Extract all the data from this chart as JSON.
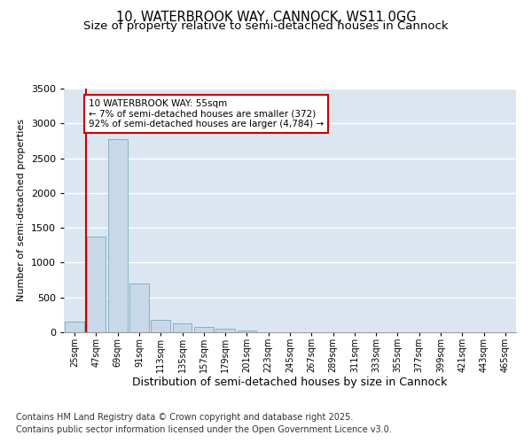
{
  "title_line1": "10, WATERBROOK WAY, CANNOCK, WS11 0GG",
  "title_line2": "Size of property relative to semi-detached houses in Cannock",
  "xlabel": "Distribution of semi-detached houses by size in Cannock",
  "ylabel": "Number of semi-detached properties",
  "categories": [
    "25sqm",
    "47sqm",
    "69sqm",
    "91sqm",
    "113sqm",
    "135sqm",
    "157sqm",
    "179sqm",
    "201sqm",
    "223sqm",
    "245sqm",
    "267sqm",
    "289sqm",
    "311sqm",
    "333sqm",
    "355sqm",
    "377sqm",
    "399sqm",
    "421sqm",
    "443sqm",
    "465sqm"
  ],
  "values": [
    150,
    1380,
    2780,
    700,
    175,
    125,
    75,
    50,
    30,
    5,
    2,
    1,
    0,
    0,
    0,
    0,
    0,
    0,
    0,
    0,
    0
  ],
  "bar_color": "#c8d8e8",
  "bar_edge_color": "#7aaabb",
  "background_color": "#dce6f0",
  "grid_color": "#ffffff",
  "vline_x": 0.53,
  "vline_color": "#cc0000",
  "annotation_text": "10 WATERBROOK WAY: 55sqm\n← 7% of semi-detached houses are smaller (372)\n92% of semi-detached houses are larger (4,784) →",
  "annotation_box_color": "#ffffff",
  "annotation_box_edge_color": "#cc0000",
  "ylim": [
    0,
    3500
  ],
  "yticks": [
    0,
    500,
    1000,
    1500,
    2000,
    2500,
    3000,
    3500
  ],
  "footnote_line1": "Contains HM Land Registry data © Crown copyright and database right 2025.",
  "footnote_line2": "Contains public sector information licensed under the Open Government Licence v3.0.",
  "title_fontsize": 10.5,
  "subtitle_fontsize": 9.5,
  "annotation_fontsize": 7.5,
  "footnote_fontsize": 7,
  "ylabel_fontsize": 8,
  "xlabel_fontsize": 9
}
